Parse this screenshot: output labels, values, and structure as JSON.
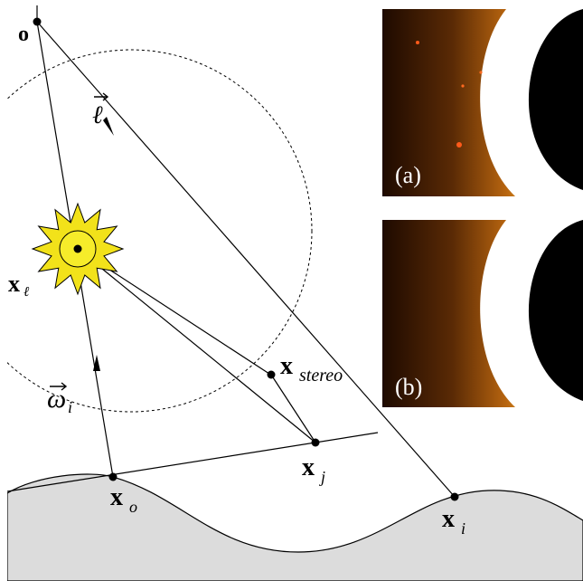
{
  "labels": {
    "origin": "o",
    "light_vector": "ℓ",
    "light_point_base": "x",
    "light_point_sub": "ℓ",
    "omega_base": "ω",
    "omega_sub": "i",
    "stereo_base": "x",
    "stereo_sub": "stereo",
    "xj_base": "x",
    "xj_sub": "j",
    "xo_base": "x",
    "xo_sub": "o",
    "xi_base": "x",
    "xi_sub": "i"
  },
  "panels": [
    {
      "label": "(a)"
    },
    {
      "label": "(b)"
    }
  ],
  "colors": {
    "surface_fill": "#dcdcdc",
    "sun_outer": "#f2e21a",
    "sun_inner": "#f6ec2a",
    "glow_dark": "#2a0f00",
    "glow_orange": "#b8650f",
    "glow_yellow": "#ffe070",
    "glow_white": "#ffffff"
  }
}
